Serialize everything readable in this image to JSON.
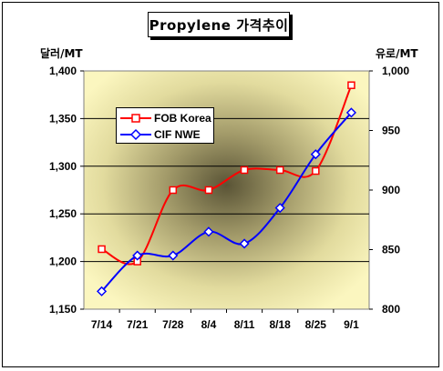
{
  "chart_data": {
    "type": "line",
    "title": "Propylene 가격추이",
    "ylabel_left": "달러/MT",
    "ylabel_right": "유로/MT",
    "categories": [
      "7/14",
      "7/21",
      "7/28",
      "8/4",
      "8/11",
      "8/18",
      "8/25",
      "9/1"
    ],
    "ylim_left": [
      1150,
      1400
    ],
    "yticks_left": [
      "1,150",
      "1,200",
      "1,250",
      "1,300",
      "1,350",
      "1,400"
    ],
    "ylim_right": [
      800,
      1000
    ],
    "yticks_right": [
      "800",
      "850",
      "900",
      "950",
      "1,000"
    ],
    "grid": true,
    "legend_position": "top-left",
    "series": [
      {
        "name": "FOB Korea",
        "axis": "left",
        "color": "#ff0000",
        "marker": "square",
        "values": [
          1213,
          1200,
          1275,
          1275,
          1296,
          1296,
          1295,
          1385
        ]
      },
      {
        "name": "CIF NWE",
        "axis": "right",
        "color": "#0000ff",
        "marker": "diamond",
        "values": [
          815,
          845,
          845,
          865,
          855,
          885,
          930,
          965
        ]
      }
    ]
  }
}
